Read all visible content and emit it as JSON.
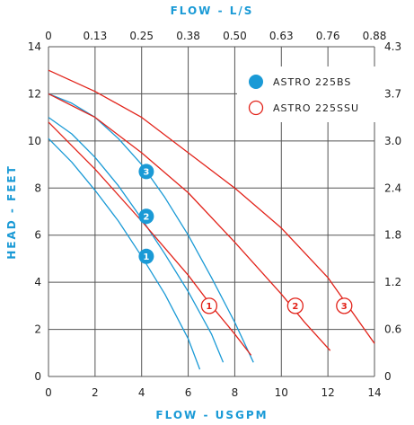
{
  "chart_data": {
    "type": "line",
    "xlabel": "FLOW - USGPM",
    "x2label": "FLOW - L/S",
    "ylabel": "HEAD - FEET",
    "xlim": [
      0,
      14
    ],
    "ylim": [
      0,
      14
    ],
    "x_ticks": [
      "0",
      "2",
      "4",
      "6",
      "8",
      "10",
      "12",
      "14"
    ],
    "y_ticks": [
      "0",
      "2",
      "4",
      "6",
      "8",
      "10",
      "12",
      "14"
    ],
    "x2_ticks": [
      "0",
      "0.13",
      "0.25",
      "0.38",
      "0.50",
      "0.63",
      "0.76",
      "0.88"
    ],
    "y2_ticks": [
      "0",
      "0.6",
      "1.2",
      "1.8",
      "2.4",
      "3.0",
      "3.7",
      "4.3"
    ],
    "grid": true,
    "legend_position": "top-right",
    "colors": {
      "blue": "#1a9ad6",
      "red": "#e2231a",
      "grid": "#555555",
      "axis_title": "#1a9ad6"
    },
    "legend": [
      {
        "label": "ASTRO 225BS",
        "style": "filled",
        "color": "#1a9ad6"
      },
      {
        "label": "ASTRO 225SSU",
        "style": "open",
        "color": "#e2231a"
      }
    ],
    "series": [
      {
        "name": "ASTRO 225BS",
        "speed": "1",
        "color": "#1a9ad6",
        "x": [
          0,
          1,
          2,
          3,
          4,
          5,
          6,
          6.5
        ],
        "y": [
          10.1,
          9.1,
          7.9,
          6.6,
          5.1,
          3.5,
          1.6,
          0.3
        ]
      },
      {
        "name": "ASTRO 225BS",
        "speed": "2",
        "color": "#1a9ad6",
        "x": [
          0,
          1,
          2,
          3,
          4,
          5,
          6,
          7,
          7.5
        ],
        "y": [
          11.0,
          10.3,
          9.3,
          8.1,
          6.7,
          5.2,
          3.6,
          1.8,
          0.6
        ]
      },
      {
        "name": "ASTRO 225BS",
        "speed": "3",
        "color": "#1a9ad6",
        "x": [
          0,
          1,
          2,
          3,
          4,
          5,
          6,
          7,
          8,
          8.8
        ],
        "y": [
          12.0,
          11.6,
          11.0,
          10.1,
          9.0,
          7.6,
          6.0,
          4.2,
          2.3,
          0.6
        ]
      },
      {
        "name": "ASTRO 225SSU",
        "speed": "1",
        "color": "#e2231a",
        "x": [
          0,
          2,
          4,
          6,
          7,
          8,
          8.7
        ],
        "y": [
          10.8,
          8.8,
          6.6,
          4.3,
          3.0,
          1.8,
          0.9
        ]
      },
      {
        "name": "ASTRO 225SSU",
        "speed": "2",
        "color": "#e2231a",
        "x": [
          0,
          2,
          4,
          6,
          8,
          10,
          11,
          12.1
        ],
        "y": [
          12.0,
          11.0,
          9.5,
          7.8,
          5.7,
          3.5,
          2.3,
          1.1
        ]
      },
      {
        "name": "ASTRO 225SSU",
        "speed": "3",
        "color": "#e2231a",
        "x": [
          0,
          2,
          4,
          6,
          8,
          10,
          12,
          13,
          14
        ],
        "y": [
          13.0,
          12.1,
          11.0,
          9.5,
          8.0,
          6.3,
          4.2,
          2.8,
          1.4
        ]
      }
    ],
    "markers": [
      {
        "label": "1",
        "style": "filled",
        "color": "#1a9ad6",
        "x": 4.2,
        "y": 5.1
      },
      {
        "label": "2",
        "style": "filled",
        "color": "#1a9ad6",
        "x": 4.2,
        "y": 6.8
      },
      {
        "label": "3",
        "style": "filled",
        "color": "#1a9ad6",
        "x": 4.2,
        "y": 8.7
      },
      {
        "label": "1",
        "style": "open",
        "color": "#e2231a",
        "x": 6.9,
        "y": 3.0
      },
      {
        "label": "2",
        "style": "open",
        "color": "#e2231a",
        "x": 10.6,
        "y": 3.0
      },
      {
        "label": "3",
        "style": "open",
        "color": "#e2231a",
        "x": 12.7,
        "y": 3.0
      }
    ]
  }
}
